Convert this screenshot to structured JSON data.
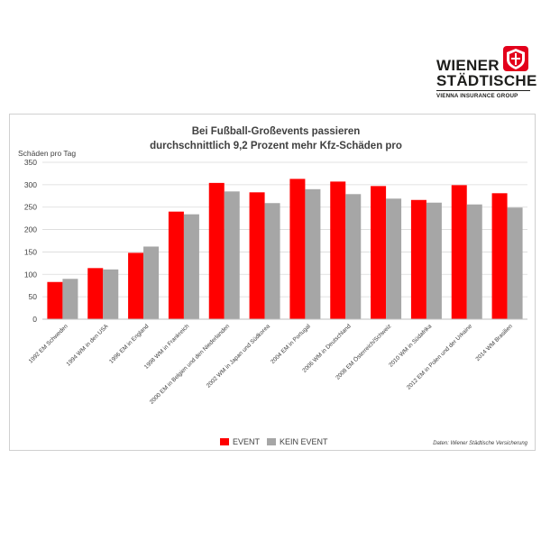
{
  "logo": {
    "line1": "WIENER",
    "line2": "STÄDTISCHE",
    "subtitle": "VIENNA INSURANCE GROUP",
    "brand_color": "#e3001b"
  },
  "colors": {
    "event": "#ff0000",
    "kein_event": "#a6a6a6",
    "grid": "#d9d9d9",
    "text": "#404040"
  },
  "source_note": "Daten: Wiener Städtische Versicherung",
  "chart_data": {
    "type": "bar",
    "title": [
      "Bei Fußball-Großevents passieren",
      "durchschnittlich 9,2 Prozent mehr Kfz-Schäden pro"
    ],
    "ylabel": "Schäden pro Tag",
    "xlabel": "",
    "ylim": [
      0,
      350
    ],
    "yticks": [
      0,
      50,
      100,
      150,
      200,
      250,
      300,
      350
    ],
    "grid": true,
    "legend_position": "bottom",
    "categories": [
      "1992 EM Schweden",
      "1994 WM in den USA",
      "1996 EM in England",
      "1998 WM in Frankreich",
      "2000 EM in Belgien und den Niederlanden",
      "2002 WM in Japan und Südkorea",
      "2004 EM in Portugal",
      "2006 WM in Deutschland",
      "2008 EM Österreich/Schweiz",
      "2010 WM in Südafrika",
      "2012 EM in Polen und der Urkaine",
      "2014 WM Brasilien"
    ],
    "series": [
      {
        "name": "EVENT",
        "values": [
          83,
          114,
          148,
          240,
          304,
          283,
          313,
          307,
          297,
          266,
          299,
          281
        ]
      },
      {
        "name": "KEIN EVENT",
        "values": [
          90,
          111,
          162,
          234,
          285,
          259,
          290,
          279,
          269,
          260,
          256,
          249
        ]
      }
    ]
  }
}
